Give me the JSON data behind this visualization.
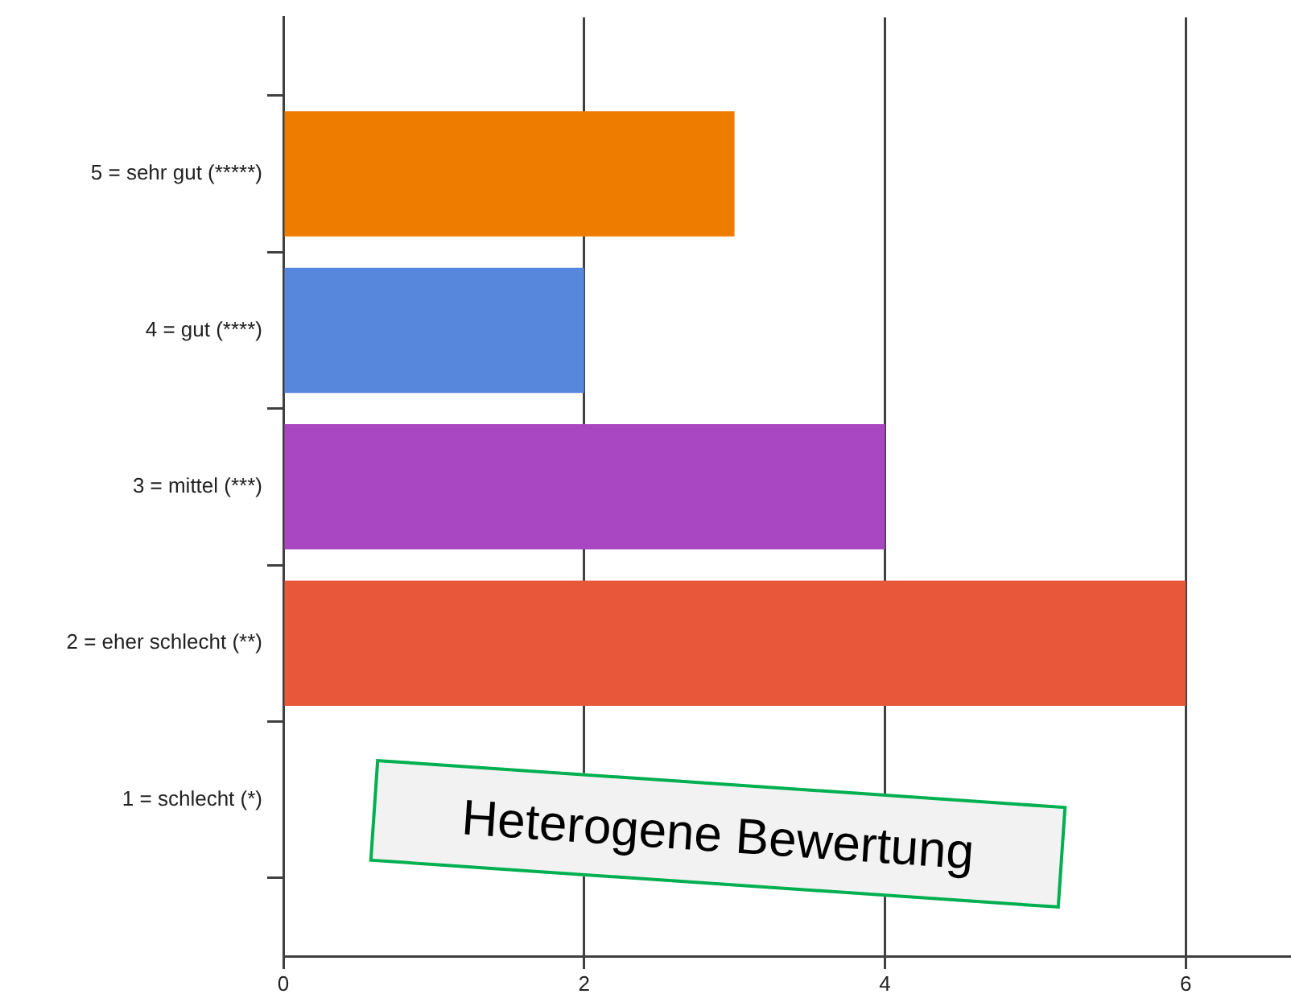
{
  "chart_data": {
    "type": "bar",
    "orientation": "horizontal",
    "categories": [
      "5 = sehr gut (*****)",
      "4 = gut (****)",
      "3 = mittel (***)",
      "2 = eher schlecht (**)",
      "1 = schlecht (*)"
    ],
    "values": [
      3,
      2,
      4,
      6,
      0
    ],
    "colors": [
      "#ee7c00",
      "#5787dd",
      "#a947c2",
      "#e9573b",
      null
    ],
    "xlim": [
      0,
      6.7
    ],
    "xticks": [
      0,
      2,
      4,
      6
    ],
    "grid": "x",
    "annotations": [
      "Heterogene Bewertung"
    ]
  }
}
